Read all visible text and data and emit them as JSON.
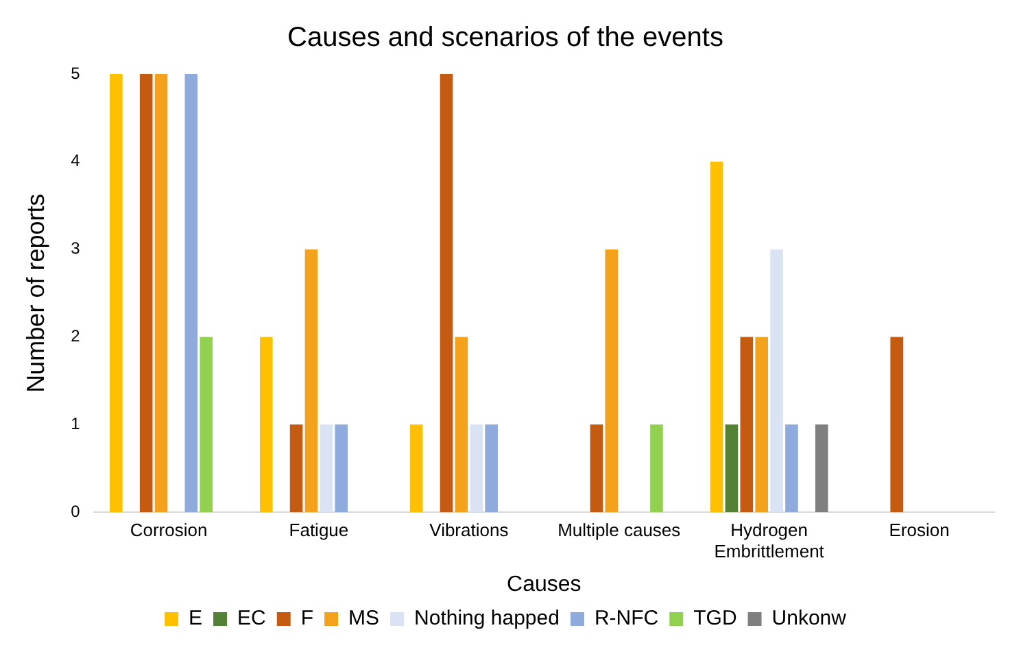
{
  "chart_data": {
    "type": "bar",
    "title": "Causes and scenarios of the events",
    "xlabel": "Causes",
    "ylabel": "Number of reports",
    "categories": [
      "Corrosion",
      "Fatigue",
      "Vibrations",
      "Multiple causes",
      "Hydrogen Embrittlement",
      "Erosion"
    ],
    "series": [
      {
        "name": "E",
        "color": "#ffc000",
        "values": [
          5,
          2,
          1,
          0,
          4,
          0
        ]
      },
      {
        "name": "EC",
        "color": "#548235",
        "values": [
          0,
          0,
          0,
          0,
          1,
          0
        ]
      },
      {
        "name": "F",
        "color": "#c55a11",
        "values": [
          5,
          1,
          5,
          1,
          2,
          2
        ]
      },
      {
        "name": "MS",
        "color": "#f4a21c",
        "values": [
          5,
          3,
          2,
          3,
          2,
          0
        ]
      },
      {
        "name": "Nothing happed",
        "color": "#dae3f3",
        "values": [
          0,
          1,
          1,
          0,
          3,
          0
        ]
      },
      {
        "name": "R-NFC",
        "color": "#8faadc",
        "values": [
          5,
          1,
          1,
          0,
          1,
          0
        ]
      },
      {
        "name": "TGD",
        "color": "#92d050",
        "values": [
          2,
          0,
          0,
          1,
          0,
          0
        ]
      },
      {
        "name": "Unkonw",
        "color": "#7f7f7f",
        "values": [
          0,
          0,
          0,
          0,
          1,
          0
        ]
      }
    ],
    "ylim": [
      0,
      5
    ],
    "yticks": [
      0,
      1,
      2,
      3,
      4,
      5
    ],
    "grid": false,
    "legend": "bottom"
  }
}
